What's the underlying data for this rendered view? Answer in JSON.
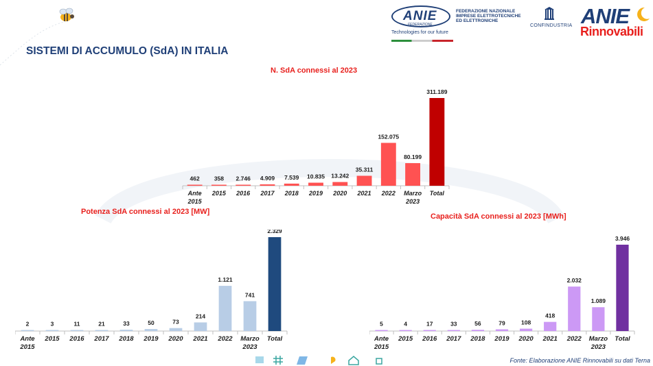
{
  "header": {
    "page_title": "SISTEMI DI ACCUMULO (SdA) IN ITALIA",
    "anie_logo": "ANIE",
    "anie_logo_sub": "FEDERAZIONE",
    "tagline": "Technologies for our future",
    "federation_lines": [
      "FEDERAZIONE NAZIONALE",
      "IMPRESE ELETTROTECNICHE",
      "ED ELETTRONICHE"
    ],
    "confindustria": "CONFINDUSTRIA",
    "rinnovabili_anie": "ANIE",
    "rinnovabili_word": "Rinnovabili",
    "icons": [
      "bee-logo-icon",
      "confindustria-logo-icon",
      "bottom-decoration-icons"
    ]
  },
  "footer": {
    "source": "Fonte: Elaborazione ANIE Rinnovabili su dati Terna"
  },
  "colors": {
    "title_red": "#e8201d",
    "navy": "#1f3f77"
  },
  "chart_data": [
    {
      "type": "bar",
      "title": "N. SdA connessi al 2023",
      "categories": [
        "Ante 2015",
        "2015",
        "2016",
        "2017",
        "2018",
        "2019",
        "2020",
        "2021",
        "2022",
        "Marzo 2023",
        "Total"
      ],
      "values": [
        462,
        358,
        2746,
        4909,
        7539,
        10835,
        13242,
        35311,
        152075,
        80199,
        311189
      ],
      "labels": [
        "462",
        "358",
        "2.746",
        "4.909",
        "7.539",
        "10.835",
        "13.242",
        "35.311",
        "152.075",
        "80.199",
        "311.189"
      ],
      "ylim": [
        0,
        311189
      ],
      "bar_color": "#ff5252",
      "total_color": "#c00000",
      "grid": false
    },
    {
      "type": "bar",
      "title": "Potenza SdA connessi al 2023 [MW]",
      "categories": [
        "Ante 2015",
        "2015",
        "2016",
        "2017",
        "2018",
        "2019",
        "2020",
        "2021",
        "2022",
        "Marzo 2023",
        "Total"
      ],
      "values": [
        2,
        3,
        11,
        21,
        33,
        50,
        73,
        214,
        1121,
        741,
        2329
      ],
      "labels": [
        "2",
        "3",
        "11",
        "21",
        "33",
        "50",
        "73",
        "214",
        "1.121",
        "741",
        "2.329"
      ],
      "ylim": [
        0,
        2329
      ],
      "bar_color": "#b8cde6",
      "total_color": "#1f4a7e",
      "grid": false
    },
    {
      "type": "bar",
      "title": "Capacità SdA connessi al 2023 [MWh]",
      "categories": [
        "Ante 2015",
        "2015",
        "2016",
        "2017",
        "2018",
        "2019",
        "2020",
        "2021",
        "2022",
        "Marzo 2023",
        "Total"
      ],
      "values": [
        5,
        4,
        17,
        33,
        56,
        79,
        108,
        418,
        2032,
        1089,
        3946
      ],
      "labels": [
        "5",
        "4",
        "17",
        "33",
        "56",
        "79",
        "108",
        "418",
        "2.032",
        "1.089",
        "3.946"
      ],
      "ylim": [
        0,
        3946
      ],
      "bar_color": "#cc99f5",
      "total_color": "#7030a0",
      "grid": false
    }
  ]
}
